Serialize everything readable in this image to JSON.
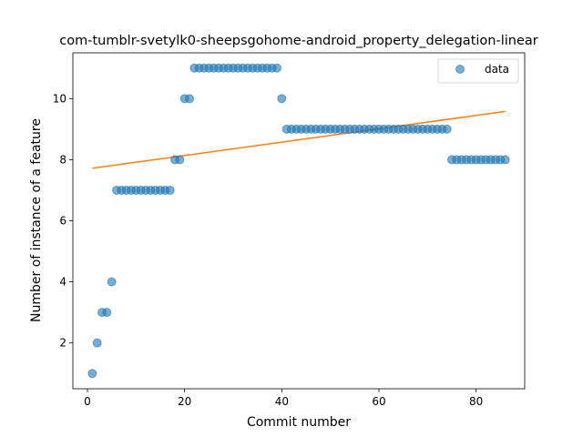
{
  "chart_data": {
    "type": "scatter",
    "title": "com-tumblr-svetylk0-sheepsgohome-android_property_delegation-linear",
    "xlabel": "Commit number",
    "ylabel": "Number of instance of a feature",
    "xlim": [
      -3,
      90
    ],
    "ylim": [
      0.5,
      11.5
    ],
    "xticks": [
      0,
      20,
      40,
      60,
      80
    ],
    "yticks": [
      2,
      4,
      6,
      8,
      10
    ],
    "legend": "top-right",
    "grid": false,
    "colors": {
      "data": "#1f77b4",
      "fit": "#ff7f0e"
    },
    "series": [
      {
        "name": "data",
        "kind": "scatter",
        "x": [
          1,
          2,
          3,
          4,
          5,
          6,
          7,
          8,
          9,
          10,
          11,
          12,
          13,
          14,
          15,
          16,
          17,
          18,
          19,
          20,
          21,
          22,
          23,
          24,
          25,
          26,
          27,
          28,
          29,
          30,
          31,
          32,
          33,
          34,
          35,
          36,
          37,
          38,
          39,
          40,
          41,
          42,
          43,
          44,
          45,
          46,
          47,
          48,
          49,
          50,
          51,
          52,
          53,
          54,
          55,
          56,
          57,
          58,
          59,
          60,
          61,
          62,
          63,
          64,
          65,
          66,
          67,
          68,
          69,
          70,
          71,
          72,
          73,
          74,
          75,
          76,
          77,
          78,
          79,
          80,
          81,
          82,
          83,
          84,
          85,
          86
        ],
        "y": [
          1,
          2,
          3,
          3,
          4,
          7,
          7,
          7,
          7,
          7,
          7,
          7,
          7,
          7,
          7,
          7,
          7,
          8,
          8,
          10,
          10,
          11,
          11,
          11,
          11,
          11,
          11,
          11,
          11,
          11,
          11,
          11,
          11,
          11,
          11,
          11,
          11,
          11,
          11,
          10,
          9,
          9,
          9,
          9,
          9,
          9,
          9,
          9,
          9,
          9,
          9,
          9,
          9,
          9,
          9,
          9,
          9,
          9,
          9,
          9,
          9,
          9,
          9,
          9,
          9,
          9,
          9,
          9,
          9,
          9,
          9,
          9,
          9,
          9,
          8,
          8,
          8,
          8,
          8,
          8,
          8,
          8,
          8,
          8,
          8,
          8
        ]
      },
      {
        "kind": "line",
        "x": [
          1,
          86
        ],
        "y": [
          7.72,
          9.58
        ]
      }
    ]
  }
}
